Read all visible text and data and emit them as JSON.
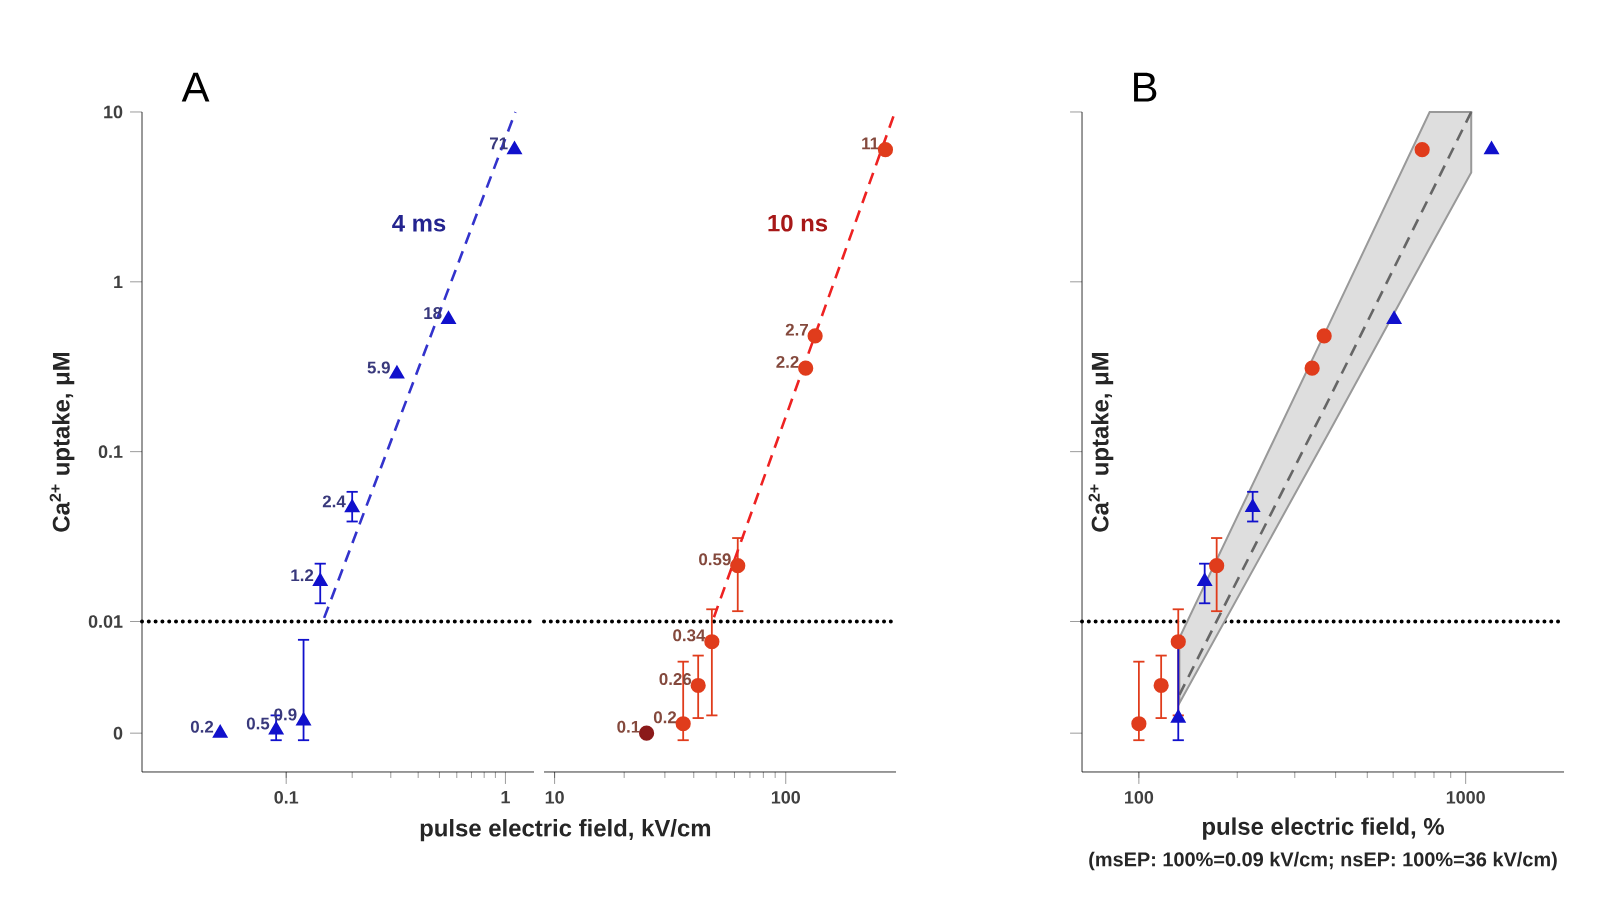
{
  "chart_data": [
    {
      "type": "scatter",
      "title": "A",
      "xlabel": "pulse electric field, kV/cm",
      "ylabel": "Ca$^{2+}$ uptake, μM",
      "log": "xy",
      "xlim": [
        0.022,
        1.35
      ],
      "ylim": [
        0.0013,
        10
      ],
      "xticks": [
        0.1,
        1
      ],
      "yticks": [
        {
          "value": 0.0022,
          "label": "0"
        },
        0.01,
        0.1,
        1,
        10
      ],
      "ref_lines": [
        {
          "axis": "y",
          "value": 0.01,
          "color": "#000000",
          "line_style": "dotted"
        }
      ],
      "series": [
        {
          "color": "#1111cc",
          "marker": "triangle",
          "x": [
            0.09,
            0.12,
            0.143,
            0.2,
            0.32,
            0.55,
            1.1
          ],
          "values": [
            0.0023,
            0.0026,
            0.0172,
            0.0468,
            0.287,
            0.6,
            6
          ],
          "errors": [
            [
              0.002,
              0.0028
            ],
            [
              0.002,
              0.0078
            ],
            [
              0.0128,
              0.0219
            ],
            [
              0.0388,
              0.058
            ],
            null,
            null,
            null
          ]
        },
        {
          "color": "#1111cc",
          "marker": "triangle",
          "x": [
            0.05
          ],
          "values": [
            0.0022
          ]
        },
        {
          "type": "line",
          "name": "4 ms",
          "color": "#3333cc",
          "line_style": "dashed",
          "x": [
            0.149,
            1.11
          ],
          "values": [
            0.0105,
            10
          ]
        }
      ],
      "annotations": [
        {
          "text": "0.2",
          "x": 0.05,
          "y": 0.0022
        },
        {
          "text": "0.5",
          "x": 0.09,
          "y": 0.0023
        },
        {
          "text": "0.9",
          "x": 0.12,
          "y": 0.0026
        },
        {
          "text": "1.2",
          "x": 0.143,
          "y": 0.0172
        },
        {
          "text": "2.4",
          "x": 0.2,
          "y": 0.0468
        },
        {
          "text": "5.9",
          "x": 0.32,
          "y": 0.287
        },
        {
          "text": "18",
          "x": 0.55,
          "y": 0.6
        },
        {
          "text": "71",
          "x": 1.1,
          "y": 6
        }
      ]
    },
    {
      "type": "scatter",
      "log": "xy",
      "tick_labels": "x",
      "xlim": [
        9,
        300
      ],
      "ylim": [
        0.0013,
        10
      ],
      "xticks": [
        10,
        100
      ],
      "ref_lines": [
        {
          "axis": "y",
          "value": 0.01,
          "color": "#000000",
          "line_style": "dotted"
        }
      ],
      "series": [
        {
          "color": "#e03c1c",
          "marker": "circle",
          "x": [
            36,
            41.8,
            47.9,
            62,
            122,
            134,
            270
          ],
          "values": [
            0.0025,
            0.0042,
            0.0076,
            0.0213,
            0.31,
            0.48,
            6
          ],
          "errors": [
            [
              0.002,
              0.0058
            ],
            [
              0.0027,
              0.0063
            ],
            [
              0.0028,
              0.0118
            ],
            [
              0.0115,
              0.031
            ],
            null,
            null,
            null
          ]
        },
        {
          "color": "#8b1a1a",
          "marker": "circle",
          "x": [
            25
          ],
          "values": [
            0.0022
          ]
        },
        {
          "type": "line",
          "name": "10 ns",
          "color": "#ee2222",
          "line_style": "dashed",
          "x": [
            48.9,
            297
          ],
          "values": [
            0.0106,
            10
          ]
        }
      ],
      "annotations": [
        {
          "text": "0.1",
          "x": 25,
          "y": 0.0022
        },
        {
          "text": "0.2",
          "x": 36,
          "y": 0.0025
        },
        {
          "text": "0.26",
          "x": 41.8,
          "y": 0.0042
        },
        {
          "text": "0.34",
          "x": 47.9,
          "y": 0.0076
        },
        {
          "text": "0.59",
          "x": 62,
          "y": 0.0213
        },
        {
          "text": "2.2",
          "x": 122,
          "y": 0.31
        },
        {
          "text": "2.7",
          "x": 134,
          "y": 0.48
        },
        {
          "text": "11",
          "x": 270,
          "y": 6
        }
      ]
    },
    {
      "type": "scatter",
      "title": "B",
      "xlabel": "pulse electric field, %",
      "ylabel": "Ca$^{2+}$ uptake, μM",
      "log": "xy",
      "tick_labels": "x",
      "xlim": [
        67,
        2000
      ],
      "ylim": [
        0.0013,
        10
      ],
      "xticks": [
        100,
        1000
      ],
      "yticks": [
        {
          "value": 0.0022,
          "label": null
        },
        {
          "value": 0.01,
          "label": null
        },
        {
          "value": 0.1,
          "label": null
        },
        {
          "value": 1,
          "label": null
        },
        {
          "value": 10,
          "label": null
        }
      ],
      "ref_lines": [
        {
          "axis": "y",
          "value": 0.01,
          "color": "#000000",
          "line_style": "dotted"
        }
      ],
      "series": [
        {
          "type": "line",
          "color": "#666666",
          "line_style": "dashed",
          "x": [
            133,
            380,
            776,
            1040
          ],
          "values": [
            0.0037,
            0.2,
            3.2,
            10
          ],
          "lower": [
            0.0033,
            0.128,
            1.58,
            4.4
          ],
          "upper": [
            0.008,
            0.55,
            10,
            10
          ]
        },
        {
          "color": "#e03c1c",
          "marker": "circle",
          "x": [
            100,
            117,
            132,
            173,
            339,
            369,
            736
          ],
          "values": [
            0.0025,
            0.0042,
            0.0076,
            0.0213,
            0.31,
            0.48,
            6
          ],
          "errors": [
            [
              0.002,
              0.0058
            ],
            [
              0.0027,
              0.0063
            ],
            [
              0.0028,
              0.0118
            ],
            [
              0.0115,
              0.031
            ],
            null,
            null,
            null
          ]
        },
        {
          "color": "#1111cc",
          "marker": "triangle",
          "x": [
            132,
            159,
            223,
            604,
            1200
          ],
          "values": [
            0.0027,
            0.0172,
            0.047,
            0.6,
            6
          ],
          "errors": [
            [
              0.002,
              0.0078
            ],
            [
              0.0128,
              0.0219
            ],
            [
              0.0388,
              0.058
            ],
            null,
            null
          ]
        }
      ],
      "annotations": [
        "(msEP: 100%=0.09 kV/cm; nsEP: 100%=36 kV/cm)"
      ]
    }
  ]
}
